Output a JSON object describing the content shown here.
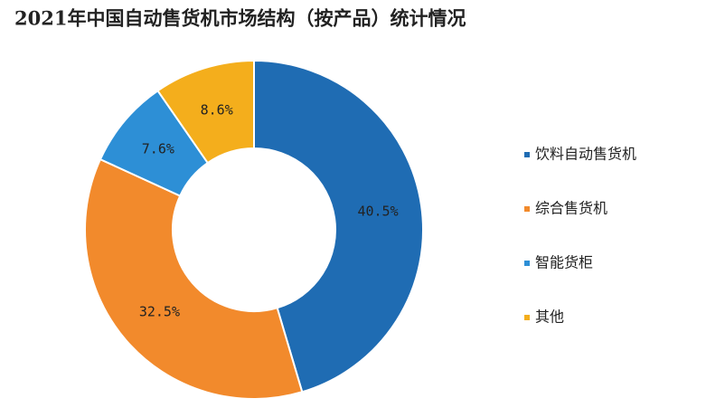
{
  "chart_data": {
    "type": "donut",
    "title": "2021年中国自动售货机市场结构（按产品）统计情况",
    "categories": [
      "饮料自动售货机",
      "综合售货机",
      "智能货柜",
      "其他"
    ],
    "values": [
      40.5,
      32.5,
      7.6,
      8.6
    ],
    "value_labels": [
      "40.5%",
      "32.5%",
      "7.6%",
      "8.6%"
    ],
    "colors": [
      "#1f6cb3",
      "#f28a2c",
      "#2d8fd6",
      "#f4ae1c"
    ],
    "legend": "right"
  }
}
